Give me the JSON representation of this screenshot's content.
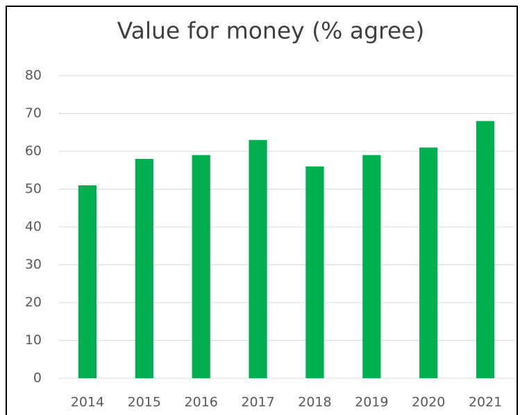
{
  "chart_data": {
    "type": "bar",
    "title": "Value for money (% agree)",
    "categories": [
      "2014",
      "2015",
      "2016",
      "2017",
      "2018",
      "2019",
      "2020",
      "2021"
    ],
    "values": [
      51,
      58,
      59,
      63,
      56,
      59,
      61,
      68
    ],
    "color": "#00b050",
    "ylim": [
      0,
      80
    ],
    "yticks": [
      0,
      10,
      20,
      30,
      40,
      50,
      60,
      70,
      80
    ],
    "grid": true
  }
}
